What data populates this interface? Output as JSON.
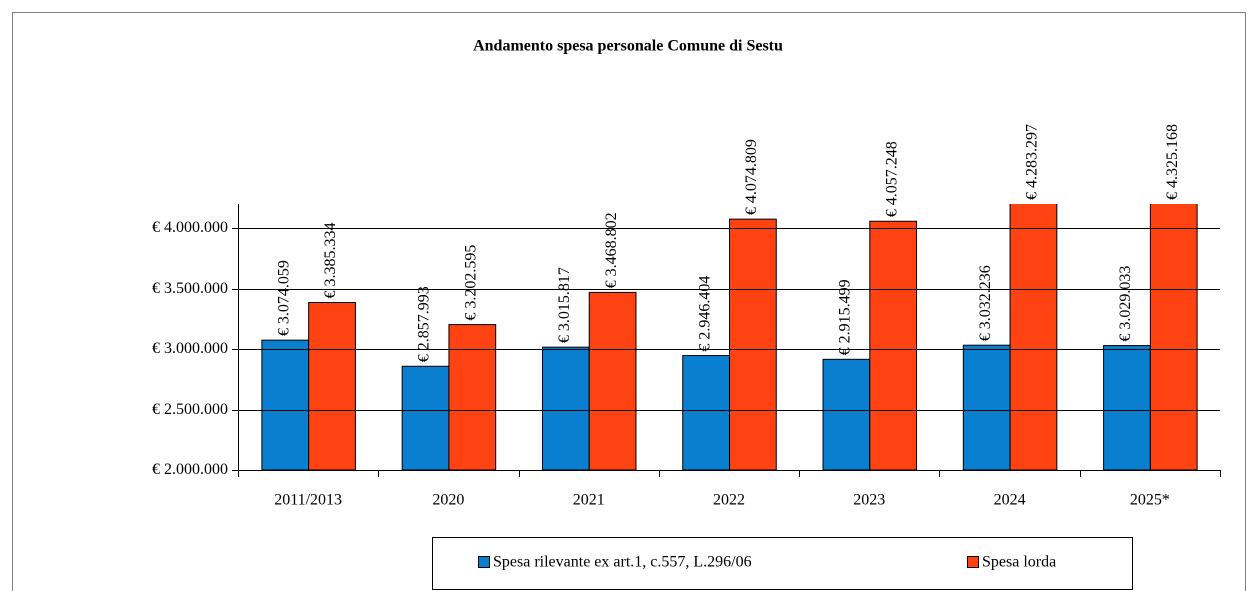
{
  "chart_data": {
    "type": "bar",
    "title": "Andamento spesa personale Comune di Sestu",
    "categories": [
      "2011/2013",
      "2020",
      "2021",
      "2022",
      "2023",
      "2024",
      "2025*"
    ],
    "series": [
      {
        "name": "Spesa rilevante ex art.1, c.557, L.296/06",
        "color": "#0a7fd0",
        "values": [
          3074059,
          2857993,
          3015817,
          2946404,
          2915499,
          3032236,
          3029033
        ],
        "value_labels": [
          "€ 3.074.059",
          "€ 2.857.993",
          "€ 3.015.817",
          "€ 2.946.404",
          "€ 2.915.499",
          "€ 3.032.236",
          "€ 3.029.033"
        ]
      },
      {
        "name": "Spesa lorda",
        "color": "#ff4212",
        "values": [
          3385334,
          3202595,
          3468802,
          4074809,
          4057248,
          4283297,
          4325168
        ],
        "value_labels": [
          "€ 3.385.334",
          "€ 3.202.595",
          "€ 3.468.802",
          "€ 4.074.809",
          "€ 4.057.248",
          "€ 4.283.297",
          "€ 4.325.168"
        ]
      }
    ],
    "ylim": [
      2000000,
      4200000
    ],
    "yticks": [
      {
        "value": 2000000,
        "label": "€ 2.000.000"
      },
      {
        "value": 2500000,
        "label": "€ 2.500.000"
      },
      {
        "value": 3000000,
        "label": "€ 3.000.000"
      },
      {
        "value": 3500000,
        "label": "€ 3.500.000"
      },
      {
        "value": 4000000,
        "label": "€ 4.000.000"
      }
    ],
    "grid": true,
    "legend": "bottom"
  }
}
